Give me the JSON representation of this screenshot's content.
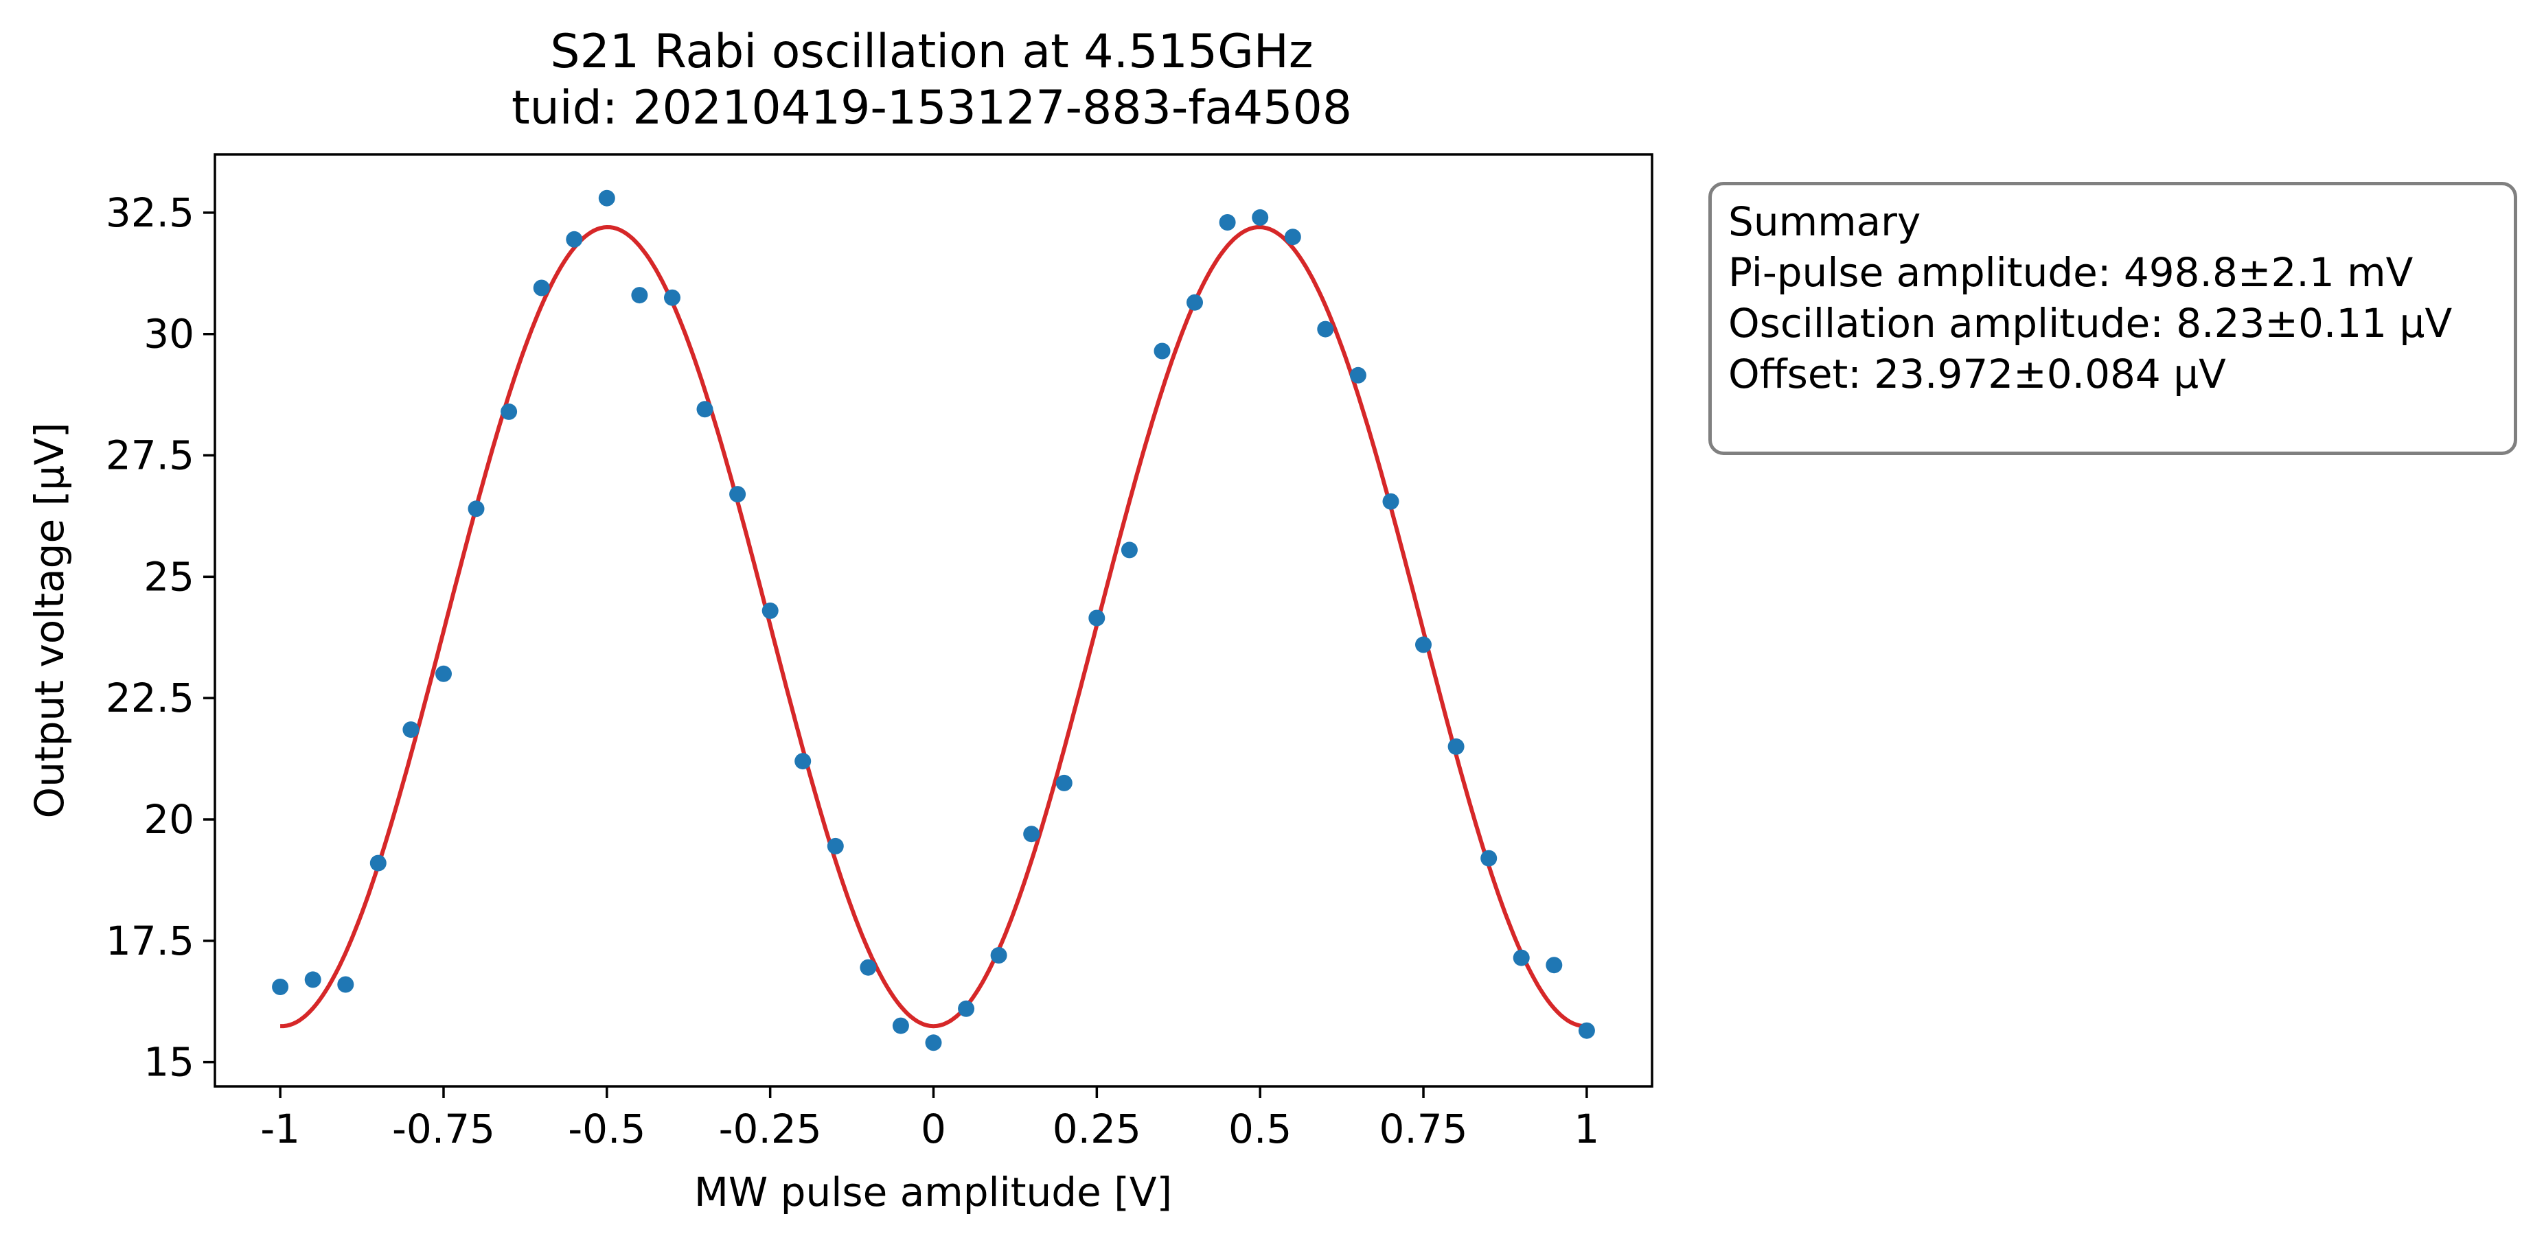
{
  "chart_data": {
    "type": "scatter",
    "title": "S21 Rabi oscillation at 4.515GHz",
    "subtitle": "tuid: 20210419-153127-883-fa4508",
    "xlabel": "MW pulse amplitude [V]",
    "ylabel": "Output voltage [μV]",
    "xlim": [
      -1.1,
      1.1
    ],
    "ylim": [
      14.5,
      33.7
    ],
    "xticks": [
      -1,
      -0.75,
      -0.5,
      -0.25,
      0,
      0.25,
      0.5,
      0.75,
      1
    ],
    "xtick_labels": [
      "-1",
      "-0.75",
      "-0.5",
      "-0.25",
      "0",
      "0.25",
      "0.5",
      "0.75",
      "1"
    ],
    "yticks": [
      15,
      17.5,
      20,
      22.5,
      25,
      27.5,
      30,
      32.5
    ],
    "ytick_labels": [
      "15",
      "17.5",
      "20",
      "22.5",
      "25",
      "27.5",
      "30",
      "32.5"
    ],
    "grid": false,
    "series": [
      {
        "kind": "scatter",
        "color": "#1f77b4",
        "x": [
          -1,
          -0.95,
          -0.9,
          -0.85,
          -0.8,
          -0.75,
          -0.7,
          -0.65,
          -0.6,
          -0.55,
          -0.5,
          -0.45,
          -0.4,
          -0.35,
          -0.3,
          -0.25,
          -0.2,
          -0.15,
          -0.1,
          -0.05,
          0,
          0.05,
          0.1,
          0.15,
          0.2,
          0.25,
          0.3,
          0.35,
          0.4,
          0.45,
          0.5,
          0.55,
          0.6,
          0.65,
          0.7,
          0.75,
          0.8,
          0.85,
          0.9,
          0.95,
          1
        ],
        "y": [
          16.55,
          16.7,
          16.6,
          19.1,
          21.85,
          23.0,
          26.4,
          28.4,
          30.95,
          31.95,
          32.8,
          30.8,
          30.75,
          28.45,
          26.7,
          24.3,
          21.2,
          19.45,
          16.95,
          15.75,
          15.4,
          16.1,
          17.2,
          19.7,
          20.75,
          24.15,
          25.55,
          29.65,
          30.65,
          32.3,
          32.4,
          32.0,
          30.1,
          29.15,
          26.55,
          23.6,
          21.5,
          19.2,
          17.15,
          17.0,
          15.65
        ]
      },
      {
        "kind": "fit-line",
        "color": "#d62728",
        "model": "offset - amplitude*cos(pi*x/pi_amp)",
        "offset": 23.972,
        "amplitude": 8.23,
        "pi_amp": 0.4988,
        "x_range": [
          -1,
          1
        ]
      }
    ]
  },
  "summary": {
    "lines": [
      "Summary",
      "Pi-pulse amplitude: 498.8±2.1 mV",
      "Oscillation amplitude: 8.23±0.11 μV",
      "Offset: 23.972±0.084 μV"
    ]
  }
}
